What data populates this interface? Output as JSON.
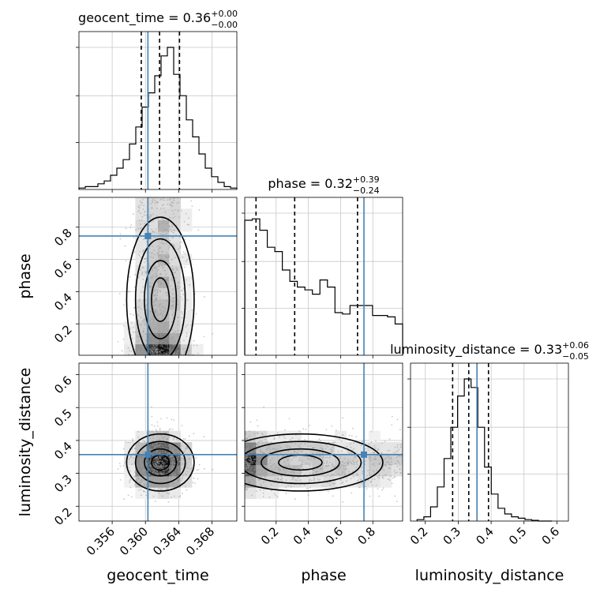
{
  "chart_data": {
    "type": "corner",
    "parameters": [
      "geocent_time",
      "phase",
      "luminosity_distance"
    ],
    "colors": {
      "truth": "#4682b4",
      "hist": "#000000",
      "scatter": "#9a9a9a",
      "grid": "#c8c8c8"
    },
    "titles": {
      "geocent_time": {
        "name": "geocent_time",
        "median": "0.36",
        "plus": "+0.00",
        "minus": "−0.00"
      },
      "phase": {
        "name": "phase",
        "median": "0.32",
        "plus": "+0.39",
        "minus": "−0.24"
      },
      "luminosity_distance": {
        "name": "luminosity_distance",
        "median": "0.33",
        "plus": "+0.06",
        "minus": "−0.05"
      }
    },
    "axis_labels": {
      "x": [
        "geocent_time",
        "phase",
        "luminosity_distance"
      ],
      "y": [
        "phase",
        "luminosity_distance"
      ]
    },
    "ranges": {
      "geocent_time": [
        0.352,
        0.371
      ],
      "phase": [
        0.005,
        0.985
      ],
      "luminosity_distance": [
        0.155,
        0.635
      ]
    },
    "ticks": {
      "geocent_time": {
        "values": [
          0.356,
          0.36,
          0.364,
          0.368
        ],
        "labels": [
          "0.356",
          "0.360",
          "0.364",
          "0.368"
        ]
      },
      "phase": {
        "values": [
          0.2,
          0.4,
          0.6,
          0.8
        ],
        "labels": [
          "0.2",
          "0.4",
          "0.6",
          "0.8"
        ]
      },
      "luminosity_distance": {
        "values": [
          0.2,
          0.3,
          0.4,
          0.5,
          0.6
        ],
        "labels": [
          "0.2",
          "0.3",
          "0.4",
          "0.5",
          "0.6"
        ]
      }
    },
    "truths": {
      "geocent_time": 0.3603,
      "phase": 0.745,
      "luminosity_distance": 0.357
    },
    "quantiles": {
      "geocent_time": [
        0.3595,
        0.3617,
        0.3641
      ],
      "phase": [
        0.075,
        0.315,
        0.705
      ],
      "luminosity_distance": [
        0.283,
        0.332,
        0.392
      ]
    },
    "histograms": {
      "geocent_time": [
        0.01,
        0.02,
        0.02,
        0.04,
        0.06,
        0.1,
        0.15,
        0.21,
        0.32,
        0.44,
        0.58,
        0.68,
        0.8,
        0.94,
        1.0,
        0.81,
        0.66,
        0.49,
        0.37,
        0.25,
        0.15,
        0.09,
        0.05,
        0.02,
        0.01
      ],
      "phase": [
        0.95,
        0.96,
        0.88,
        0.76,
        0.73,
        0.6,
        0.52,
        0.48,
        0.46,
        0.43,
        0.53,
        0.48,
        0.3,
        0.29,
        0.35,
        0.35,
        0.35,
        0.28,
        0.28,
        0.27,
        0.22
      ],
      "luminosity_distance": [
        0.01,
        0.03,
        0.1,
        0.24,
        0.44,
        0.66,
        0.88,
        1.0,
        0.94,
        0.66,
        0.38,
        0.19,
        0.09,
        0.05,
        0.03,
        0.02,
        0.01,
        0.005,
        0.0,
        0.0
      ]
    },
    "hist_bins": {
      "geocent_time": [
        0.352,
        0.371
      ],
      "phase": [
        0.005,
        0.985
      ],
      "luminosity_distance": [
        0.175,
        0.585
      ]
    },
    "posterior_centers": {
      "geocent_time": {
        "mean": 0.3618,
        "sd": 0.0018
      },
      "phase": {
        "mode": 0.08
      },
      "luminosity_distance": {
        "mean": 0.333,
        "sd": 0.045
      }
    },
    "grid": true
  }
}
